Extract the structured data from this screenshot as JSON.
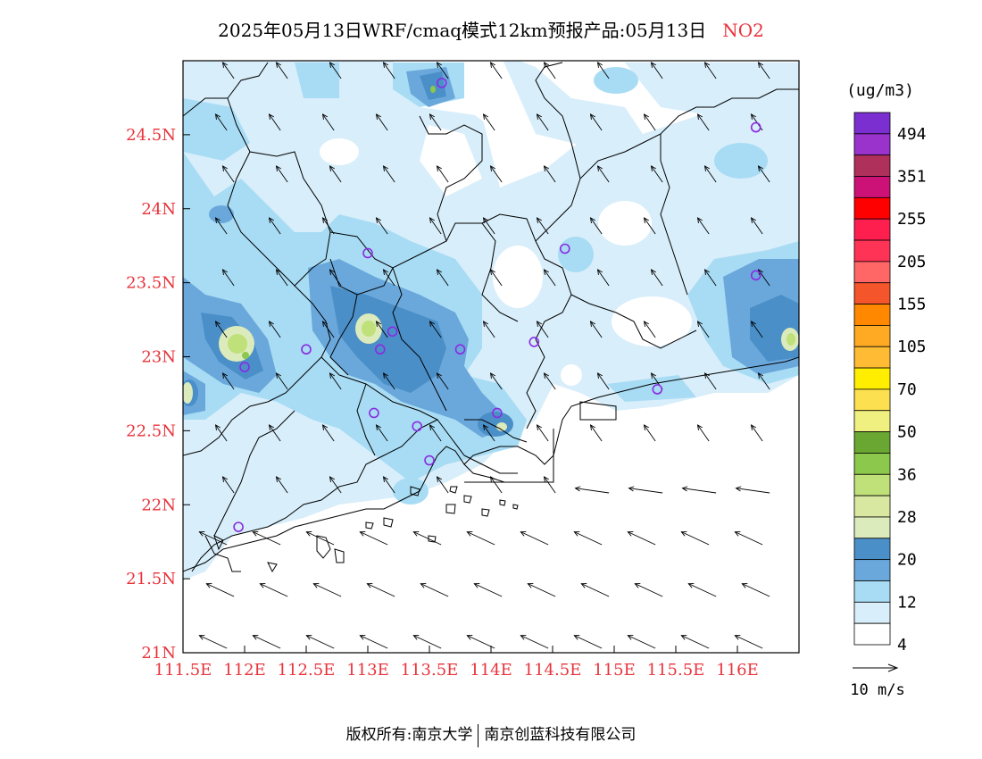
{
  "title": {
    "main": "2025年05月13日WRF/cmaq模式12km预报产品:05月13日",
    "species": "NO2",
    "species_color": "#e8333b"
  },
  "axes": {
    "y_ticks": [
      "24.5N",
      "24N",
      "23.5N",
      "23N",
      "22.5N",
      "22N",
      "21.5N",
      "21N"
    ],
    "x_ticks": [
      "111.5E",
      "112E",
      "112.5E",
      "113E",
      "113.5E",
      "114E",
      "114.5E",
      "115E",
      "115.5E",
      "116E"
    ],
    "tick_color": "#e8333b",
    "lon_range": [
      111.5,
      116.5
    ],
    "lat_range": [
      21,
      25
    ]
  },
  "legend": {
    "unit": "(ug/m3)",
    "labels": [
      "494",
      "351",
      "255",
      "205",
      "155",
      "105",
      "70",
      "50",
      "36",
      "28",
      "20",
      "12",
      "4"
    ],
    "colors": [
      "#7b2fd0",
      "#9933cc",
      "#b0305c",
      "#cc1177",
      "#ff0000",
      "#ff1f4f",
      "#ff3355",
      "#ff6666",
      "#f4552b",
      "#ff8800",
      "#ffaa22",
      "#ffbb33",
      "#ffee00",
      "#fde050",
      "#f0f080",
      "#6aa632",
      "#8bc84b",
      "#c0e07a",
      "#d8e8a0",
      "#dcebbc",
      "#4b8fc8",
      "#6aa8dc",
      "#a8dcf4",
      "#d8eefa",
      "#ffffff"
    ]
  },
  "wind_scale": {
    "label": "10 m/s"
  },
  "copyright": {
    "left": "版权所有:南京大学",
    "right": "南京创蓝科技有限公司"
  },
  "chart_data": {
    "type": "heatmap",
    "title": "2025年05月13日WRF/cmaq模式12km预报产品:05月13日 NO2",
    "xlabel": "",
    "ylabel": "",
    "xlim": [
      111.5,
      116.5
    ],
    "ylim": [
      21,
      25
    ],
    "unit": "ug/m3",
    "concentration_levels": [
      4,
      12,
      20,
      28,
      36,
      50,
      70,
      105,
      155,
      205,
      255,
      351,
      494
    ],
    "stations": [
      {
        "lon": 113.6,
        "lat": 24.85
      },
      {
        "lon": 116.15,
        "lat": 24.55
      },
      {
        "lon": 113.0,
        "lat": 23.7
      },
      {
        "lon": 114.6,
        "lat": 23.73
      },
      {
        "lon": 116.15,
        "lat": 23.55
      },
      {
        "lon": 112.0,
        "lat": 22.93
      },
      {
        "lon": 112.5,
        "lat": 23.05
      },
      {
        "lon": 113.1,
        "lat": 23.05
      },
      {
        "lon": 113.2,
        "lat": 23.17
      },
      {
        "lon": 113.75,
        "lat": 23.05
      },
      {
        "lon": 114.35,
        "lat": 23.1
      },
      {
        "lon": 115.35,
        "lat": 22.78
      },
      {
        "lon": 113.05,
        "lat": 22.62
      },
      {
        "lon": 113.4,
        "lat": 22.53
      },
      {
        "lon": 114.05,
        "lat": 22.62
      },
      {
        "lon": 113.5,
        "lat": 22.3
      },
      {
        "lon": 111.95,
        "lat": 21.85
      }
    ],
    "hotspots": [
      {
        "lon": 112.0,
        "lat": 23.05,
        "level": 28
      },
      {
        "lon": 113.0,
        "lat": 23.2,
        "level": 28
      },
      {
        "lon": 113.6,
        "lat": 24.88,
        "level": 20
      },
      {
        "lon": 116.4,
        "lat": 23.15,
        "level": 28
      },
      {
        "lon": 111.5,
        "lat": 22.75,
        "level": 28
      },
      {
        "lon": 114.05,
        "lat": 22.55,
        "level": 28
      }
    ]
  }
}
